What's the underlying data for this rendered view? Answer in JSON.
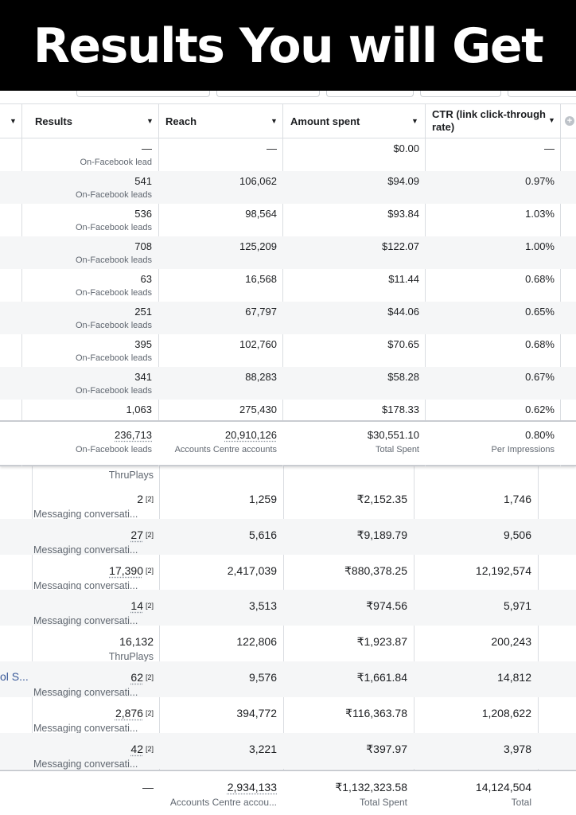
{
  "banner": {
    "title": "Results You will Get"
  },
  "top_table": {
    "columns": {
      "results": "Results",
      "reach": "Reach",
      "amount_spent": "Amount spent",
      "ctr_line1": "CTR (link click-through",
      "ctr_line2": "rate)"
    },
    "rows": [
      {
        "results": "—",
        "results_sub": "On-Facebook lead",
        "reach": "—",
        "spent": "$0.00",
        "ctr": "—"
      },
      {
        "results": "541",
        "results_sub": "On-Facebook leads",
        "reach": "106,062",
        "spent": "$94.09",
        "ctr": "0.97%"
      },
      {
        "results": "536",
        "results_sub": "On-Facebook leads",
        "reach": "98,564",
        "spent": "$93.84",
        "ctr": "1.03%"
      },
      {
        "results": "708",
        "results_sub": "On-Facebook leads",
        "reach": "125,209",
        "spent": "$122.07",
        "ctr": "1.00%"
      },
      {
        "results": "63",
        "results_sub": "On-Facebook leads",
        "reach": "16,568",
        "spent": "$11.44",
        "ctr": "0.68%"
      },
      {
        "results": "251",
        "results_sub": "On-Facebook leads",
        "reach": "67,797",
        "spent": "$44.06",
        "ctr": "0.65%"
      },
      {
        "results": "395",
        "results_sub": "On-Facebook leads",
        "reach": "102,760",
        "spent": "$70.65",
        "ctr": "0.68%"
      },
      {
        "results": "341",
        "results_sub": "On-Facebook leads",
        "reach": "88,283",
        "spent": "$58.28",
        "ctr": "0.67%"
      },
      {
        "results": "1,063",
        "results_sub": "",
        "reach": "275,430",
        "spent": "$178.33",
        "ctr": "0.62%"
      }
    ],
    "totals": {
      "results": "236,713",
      "results_sub": "On-Facebook leads",
      "reach": "20,910,126",
      "reach_sub": "Accounts Centre accounts",
      "spent": "$30,551.10",
      "spent_sub": "Total Spent",
      "ctr": "0.80%",
      "ctr_sub": "Per Impressions"
    }
  },
  "bottom_table": {
    "partial_top_sub": "ThruPlays",
    "ref_marker": "[2]",
    "rows": [
      {
        "results": "2",
        "ref": true,
        "results_sub": "Messaging conversati...",
        "reach": "1,259",
        "spent": "₹2,152.35",
        "impressions": "1,746",
        "underline": false
      },
      {
        "results": "27",
        "ref": true,
        "results_sub": "Messaging conversati...",
        "reach": "5,616",
        "spent": "₹9,189.79",
        "impressions": "9,506",
        "underline": true
      },
      {
        "results": "17,390",
        "ref": true,
        "results_sub": "Messaging conversati...",
        "reach": "2,417,039",
        "spent": "₹880,378.25",
        "impressions": "12,192,574",
        "underline": true
      },
      {
        "results": "14",
        "ref": true,
        "results_sub": "Messaging conversati...",
        "reach": "3,513",
        "spent": "₹974.56",
        "impressions": "5,971",
        "underline": true
      },
      {
        "results": "16,132",
        "ref": false,
        "results_sub": "ThruPlays",
        "reach": "122,806",
        "spent": "₹1,923.87",
        "impressions": "200,243",
        "underline": false
      },
      {
        "results": "62",
        "ref": true,
        "results_sub": "Messaging conversati...",
        "reach": "9,576",
        "spent": "₹1,661.84",
        "impressions": "14,812",
        "underline": true,
        "campaign": "ol S..."
      },
      {
        "results": "2,876",
        "ref": true,
        "results_sub": "Messaging conversati...",
        "reach": "394,772",
        "spent": "₹116,363.78",
        "impressions": "1,208,622",
        "underline": true
      },
      {
        "results": "42",
        "ref": true,
        "results_sub": "Messaging conversati...",
        "reach": "3,221",
        "spent": "₹397.97",
        "impressions": "3,978",
        "underline": true
      }
    ],
    "totals": {
      "results": "—",
      "reach": "2,934,133",
      "reach_sub": "Accounts Centre accou...",
      "spent": "₹1,132,323.58",
      "spent_sub": "Total Spent",
      "impressions": "14,124,504",
      "impressions_sub": "Total"
    }
  },
  "icons": {
    "sort": "caret-down-icon",
    "add_column": "plus-circle-icon"
  },
  "colors": {
    "banner_bg": "#000000",
    "banner_text": "#ffffff",
    "row_alt": "#f5f6f7",
    "link": "#385898",
    "muted": "#606770"
  }
}
